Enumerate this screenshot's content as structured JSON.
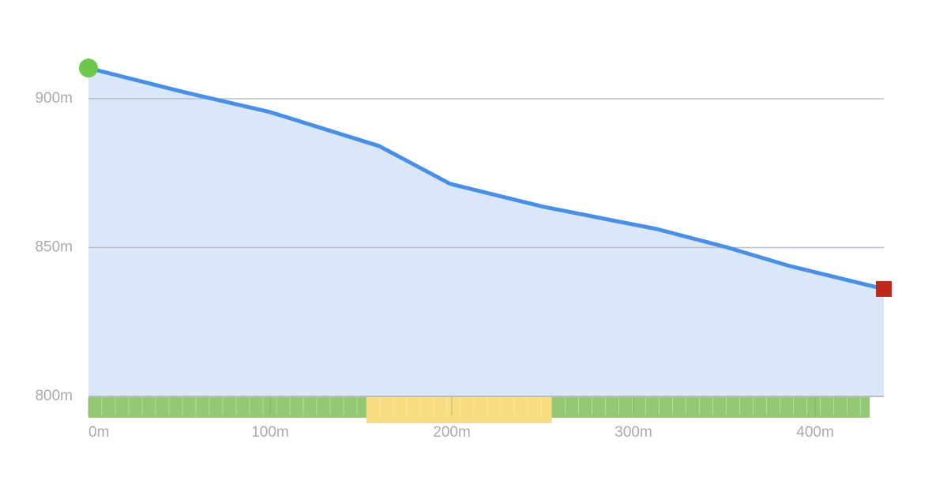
{
  "chart_data": {
    "type": "area",
    "x": [
      0,
      51.3,
      100,
      160,
      199.1,
      250.4,
      313,
      351.3,
      386,
      437.8
    ],
    "values": [
      910.3,
      902.4,
      895.5,
      884.1,
      871.4,
      863.7,
      856.2,
      850.1,
      843.8,
      836.1
    ],
    "line_color": "#4a8fe6",
    "fill_color": "#dae7f8",
    "start_color": "#6cc84a",
    "end_color": "#c0281c",
    "xlim": [
      0,
      437.8
    ],
    "ylim": [
      800,
      915
    ],
    "xticks": [
      {
        "value": 0,
        "label": "0m"
      },
      {
        "value": 100,
        "label": "100m"
      },
      {
        "value": 200,
        "label": "200m"
      },
      {
        "value": 300,
        "label": "300m"
      },
      {
        "value": 400,
        "label": "400m"
      }
    ],
    "yticks": [
      {
        "value": 800,
        "label": "800m"
      },
      {
        "value": 850,
        "label": "850m"
      },
      {
        "value": 900,
        "label": "900m"
      }
    ],
    "grid": true,
    "segments": [
      {
        "start": 0,
        "end": 153,
        "color": "#93c874"
      },
      {
        "start": 153,
        "end": 255,
        "color": "#f8dc82"
      },
      {
        "start": 255,
        "end": 430,
        "color": "#93c874"
      }
    ]
  }
}
